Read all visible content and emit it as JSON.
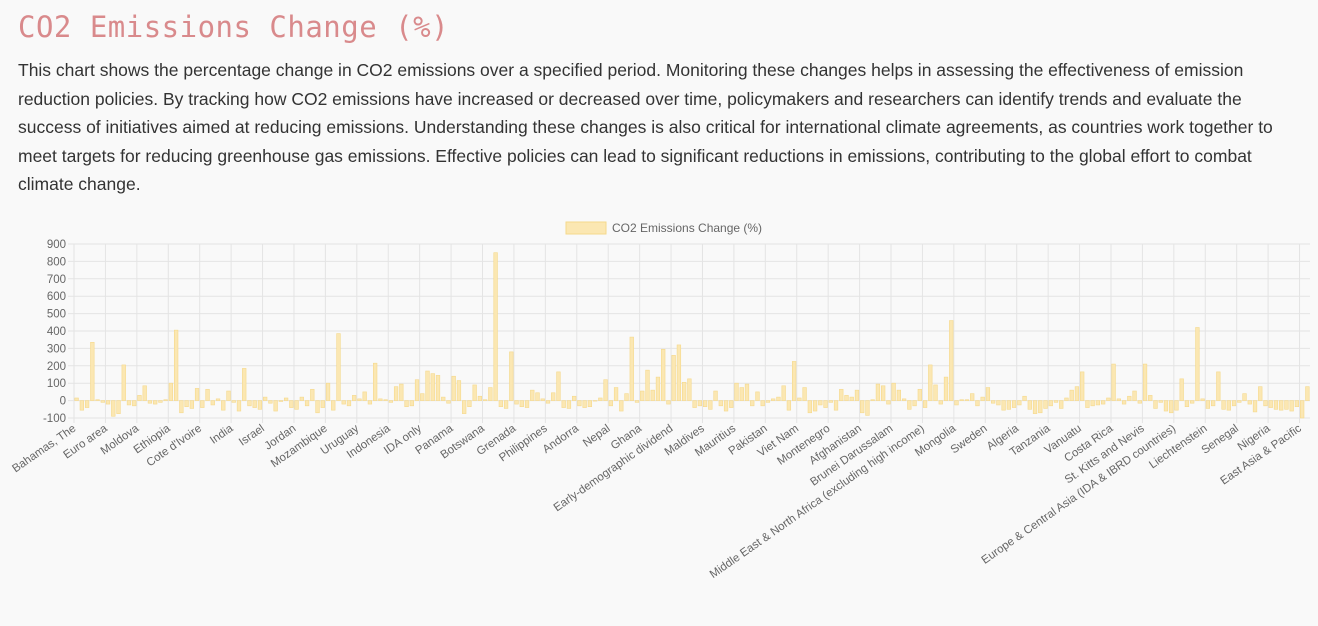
{
  "page": {
    "title": "CO2 Emissions Change (%)",
    "description": "This chart shows the percentage change in CO2 emissions over a specified period. Monitoring these changes helps in assessing the effectiveness of emission reduction policies. By tracking how CO2 emissions have increased or decreased over time, policymakers and researchers can identify trends and evaluate the success of initiatives aimed at reducing emissions. Understanding these changes is also critical for international climate agreements, as countries work together to meet targets for reducing greenhouse gas emissions. Effective policies can lead to significant reductions in emissions, contributing to the global effort to combat climate change."
  },
  "chart_data": {
    "type": "bar",
    "title": "",
    "legend": {
      "position": "top",
      "label": "CO2 Emissions Change (%)"
    },
    "xlabel": "",
    "ylabel": "",
    "ylim": [
      -100,
      900
    ],
    "yticks": [
      -100,
      0,
      100,
      200,
      300,
      400,
      500,
      600,
      700,
      800,
      900
    ],
    "grid": true,
    "colors": {
      "bar_fill": "#fbe7b2",
      "bar_border": "#f5d98c",
      "grid": "#e4e4e4"
    },
    "category_labels": [
      {
        "index": 0,
        "label": "Bahamas, The"
      },
      {
        "index": 6,
        "label": "Euro area"
      },
      {
        "index": 12,
        "label": "Moldova"
      },
      {
        "index": 18,
        "label": "Ethiopia"
      },
      {
        "index": 24,
        "label": "Cote d'Ivoire"
      },
      {
        "index": 30,
        "label": "India"
      },
      {
        "index": 36,
        "label": "Israel"
      },
      {
        "index": 42,
        "label": "Jordan"
      },
      {
        "index": 48,
        "label": "Mozambique"
      },
      {
        "index": 54,
        "label": "Uruguay"
      },
      {
        "index": 60,
        "label": "Indonesia"
      },
      {
        "index": 66,
        "label": "IDA only"
      },
      {
        "index": 72,
        "label": "Panama"
      },
      {
        "index": 78,
        "label": "Botswana"
      },
      {
        "index": 84,
        "label": "Grenada"
      },
      {
        "index": 90,
        "label": "Philippines"
      },
      {
        "index": 96,
        "label": "Andorra"
      },
      {
        "index": 102,
        "label": "Nepal"
      },
      {
        "index": 108,
        "label": "Ghana"
      },
      {
        "index": 114,
        "label": "Early-demographic dividend"
      },
      {
        "index": 120,
        "label": "Maldives"
      },
      {
        "index": 126,
        "label": "Mauritius"
      },
      {
        "index": 132,
        "label": "Pakistan"
      },
      {
        "index": 138,
        "label": "Viet Nam"
      },
      {
        "index": 144,
        "label": "Montenegro"
      },
      {
        "index": 150,
        "label": "Afghanistan"
      },
      {
        "index": 156,
        "label": "Brunei Darussalam"
      },
      {
        "index": 162,
        "label": "Middle East & North Africa (excluding high income)"
      },
      {
        "index": 168,
        "label": "Mongolia"
      },
      {
        "index": 174,
        "label": "Sweden"
      },
      {
        "index": 180,
        "label": "Algeria"
      },
      {
        "index": 186,
        "label": "Tanzania"
      },
      {
        "index": 192,
        "label": "Vanuatu"
      },
      {
        "index": 198,
        "label": "Costa Rica"
      },
      {
        "index": 204,
        "label": "St. Kitts and Nevis"
      },
      {
        "index": 210,
        "label": "Europe & Central Asia (IDA & IBRD countries)"
      },
      {
        "index": 216,
        "label": "Liechtenstein"
      },
      {
        "index": 222,
        "label": "Senegal"
      },
      {
        "index": 228,
        "label": "Nigeria"
      },
      {
        "index": 234,
        "label": "East Asia & Pacific"
      }
    ],
    "values": [
      15,
      -55,
      -40,
      335,
      5,
      -10,
      -20,
      -90,
      -75,
      205,
      -25,
      -30,
      30,
      85,
      -15,
      -20,
      -10,
      5,
      100,
      405,
      -70,
      -35,
      -45,
      70,
      -40,
      65,
      -25,
      10,
      -55,
      55,
      -10,
      -60,
      185,
      -30,
      -40,
      -50,
      20,
      -15,
      -60,
      -5,
      15,
      -40,
      -50,
      20,
      -30,
      65,
      -70,
      -40,
      100,
      -55,
      385,
      -20,
      -30,
      30,
      10,
      50,
      -20,
      215,
      10,
      5,
      -10,
      80,
      95,
      -35,
      -30,
      120,
      40,
      170,
      155,
      145,
      20,
      -15,
      140,
      115,
      -75,
      -35,
      90,
      25,
      5,
      75,
      850,
      -35,
      -45,
      280,
      -20,
      -35,
      -40,
      60,
      45,
      10,
      -15,
      45,
      165,
      -40,
      -45,
      25,
      -30,
      -40,
      -35,
      0,
      15,
      120,
      -30,
      75,
      -60,
      40,
      365,
      -10,
      55,
      175,
      60,
      135,
      295,
      -20,
      260,
      320,
      105,
      125,
      -40,
      -30,
      -35,
      -50,
      55,
      -30,
      -60,
      -40,
      100,
      75,
      95,
      -30,
      50,
      -30,
      -10,
      10,
      20,
      85,
      -55,
      225,
      15,
      75,
      -70,
      -60,
      -25,
      -40,
      -10,
      -55,
      65,
      30,
      20,
      60,
      -70,
      -85,
      5,
      95,
      85,
      -20,
      100,
      60,
      10,
      -50,
      -30,
      65,
      -40,
      205,
      90,
      -20,
      135,
      460,
      -25,
      5,
      5,
      40,
      -30,
      20,
      75,
      -15,
      -25,
      -55,
      -50,
      -40,
      -25,
      25,
      -50,
      -75,
      -70,
      -45,
      -30,
      -10,
      -45,
      15,
      60,
      80,
      165,
      -40,
      -30,
      -25,
      -20,
      15,
      210,
      10,
      -20,
      25,
      55,
      -15,
      210,
      30,
      -45,
      -10,
      -60,
      -70,
      -55,
      125,
      -35,
      -15,
      420,
      10,
      -45,
      -30,
      165,
      -50,
      -55,
      -30,
      -10,
      40,
      -20,
      -65,
      80,
      -30,
      -40,
      -50,
      -55,
      -50,
      -60,
      -35,
      -100,
      80
    ]
  }
}
